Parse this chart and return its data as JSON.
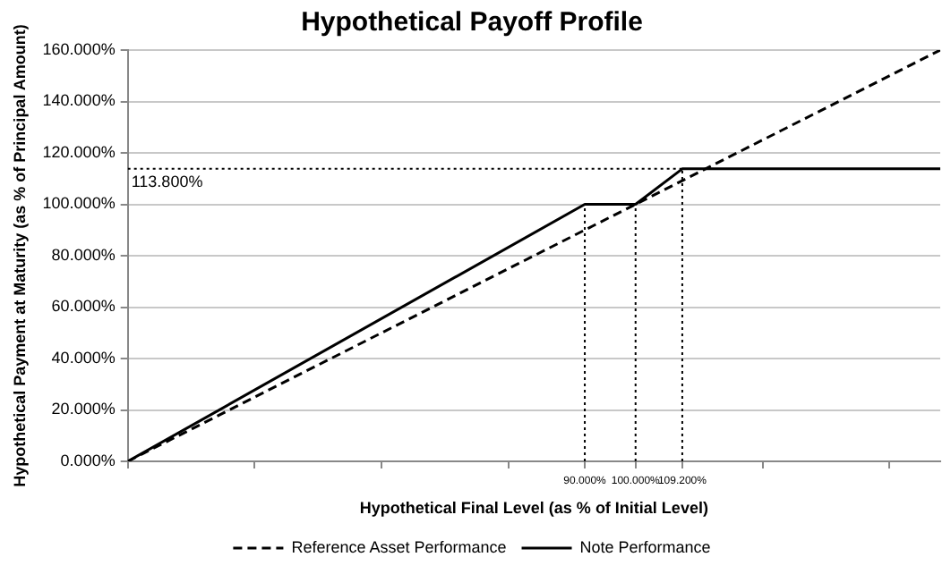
{
  "chart_data": {
    "type": "line",
    "title": "Hypothetical Payoff Profile",
    "xlabel": "Hypothetical Final Level (as % of Initial Level)",
    "ylabel": "Hypothetical Payment at Maturity (as % of Principal Amount)",
    "xlim": [
      0,
      160
    ],
    "xticks": [
      {
        "value": 0,
        "label": null
      },
      {
        "value": 25,
        "label": null
      },
      {
        "value": 50,
        "label": null
      },
      {
        "value": 75,
        "label": null
      },
      {
        "value": 90,
        "label": "90.000%"
      },
      {
        "value": 100,
        "label": "100.000%"
      },
      {
        "value": 109.2,
        "label": "109.200%"
      },
      {
        "value": 125,
        "label": null
      },
      {
        "value": 150,
        "label": null
      }
    ],
    "ylim": [
      0,
      160
    ],
    "yticks": [
      {
        "value": 0,
        "label": "0.000%"
      },
      {
        "value": 20,
        "label": "20.000%"
      },
      {
        "value": 40,
        "label": "40.000%"
      },
      {
        "value": 60,
        "label": "60.000%"
      },
      {
        "value": 80,
        "label": "80.000%"
      },
      {
        "value": 100,
        "label": "100.000%"
      },
      {
        "value": 120,
        "label": "120.000%"
      },
      {
        "value": 140,
        "label": "140.000%"
      },
      {
        "value": 160,
        "label": "160.000%"
      }
    ],
    "grid": "y",
    "legend": "bottom",
    "marker": "none",
    "series": [
      {
        "name": "Reference Asset Performance",
        "color": "#000000",
        "line_style": "dashed",
        "x": [
          0,
          160
        ],
        "values": [
          0,
          160
        ]
      },
      {
        "name": "Note Performance",
        "color": "#000000",
        "line_style": "solid",
        "x": [
          0,
          90,
          100,
          109.2,
          160
        ],
        "values": [
          0,
          100,
          100,
          113.8,
          113.8
        ]
      },
      {
        "color": "#000000",
        "line_style": "dotted",
        "x": [
          90,
          90
        ],
        "values": [
          0,
          100
        ]
      },
      {
        "color": "#000000",
        "line_style": "dotted",
        "x": [
          100,
          100
        ],
        "values": [
          0,
          100
        ]
      },
      {
        "color": "#000000",
        "line_style": "dotted",
        "x": [
          109.2,
          109.2
        ],
        "values": [
          0,
          113.8
        ]
      },
      {
        "color": "#000000",
        "line_style": "dotted",
        "x": [
          0,
          109.2
        ],
        "values": [
          113.8,
          113.8
        ]
      }
    ],
    "annotations": [
      {
        "text": "113.800%",
        "x": 0,
        "y": 113.8
      }
    ]
  }
}
